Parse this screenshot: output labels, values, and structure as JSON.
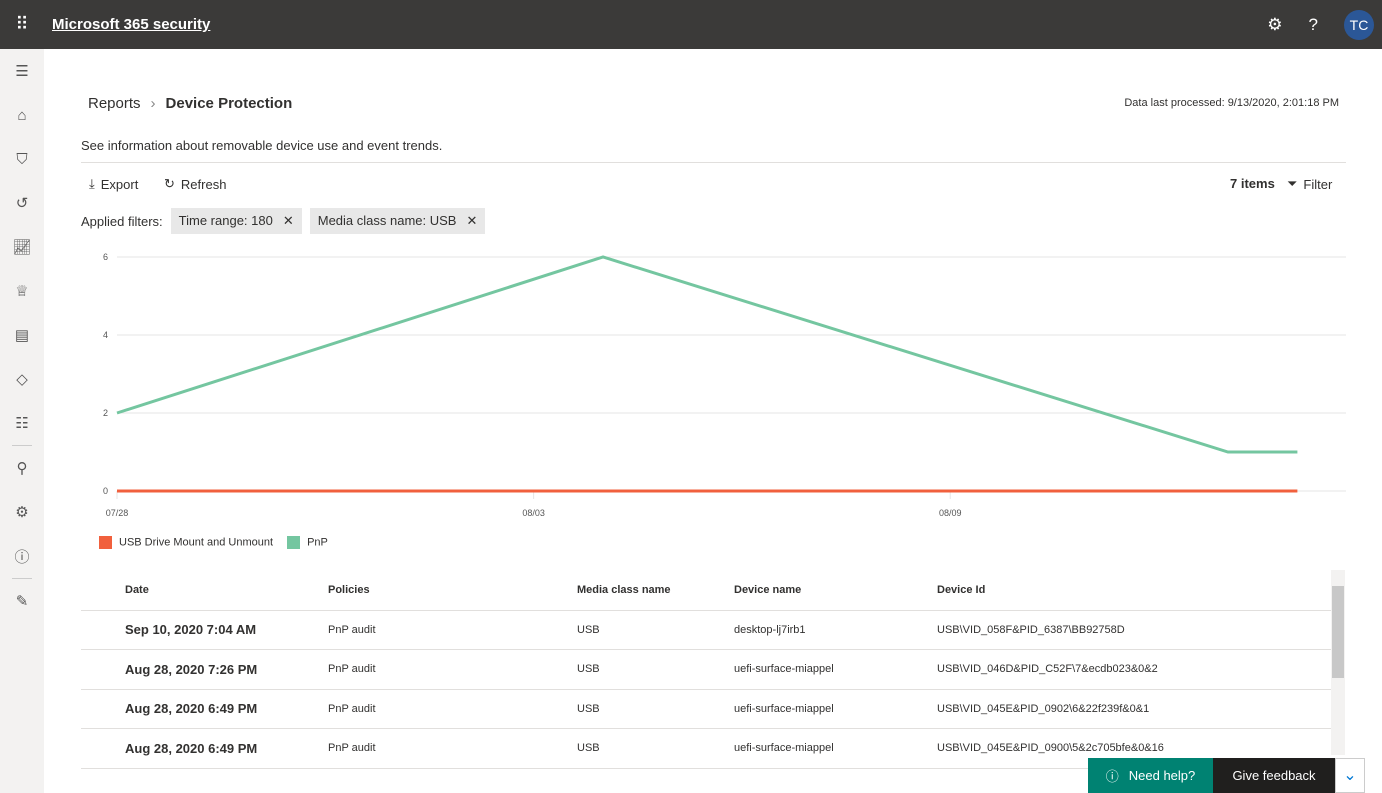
{
  "header": {
    "title": "Microsoft 365 security",
    "avatar": "TC",
    "icons": [
      "waffle-icon",
      "gear-icon",
      "help-icon"
    ]
  },
  "sidebar": {
    "icons": [
      "menu-icon",
      "home-icon",
      "shield-icon",
      "incidents-icon",
      "chart-icon",
      "trophy-icon",
      "reports-icon",
      "tag-icon",
      "settings-sliders-icon",
      "search-tool-icon",
      "gear-icon",
      "info-icon",
      "pencil-icon"
    ]
  },
  "breadcrumb": {
    "parent": "Reports",
    "current": "Device Protection"
  },
  "processed": "Data last processed: 9/13/2020, 2:01:18 PM",
  "description": "See information about removable device use and event trends.",
  "toolbar": {
    "export": "Export",
    "refresh": "Refresh",
    "count": "7 items",
    "filter": "Filter"
  },
  "filters": {
    "label": "Applied filters:",
    "chips": [
      "Time range: 180",
      "Media class name: USB"
    ]
  },
  "chart_data": {
    "type": "line",
    "x_ticks": [
      "07/28",
      "08/03",
      "08/09"
    ],
    "y_ticks": [
      0,
      2,
      4,
      6
    ],
    "ylim": [
      0,
      6
    ],
    "xlim": [
      "07/28",
      "08/14"
    ],
    "grid": "horizontal",
    "legend": "bottom-left",
    "series": [
      {
        "name": "USB Drive Mount and Unmount",
        "color": "#f1603d",
        "points": [
          [
            "07/28",
            0
          ],
          [
            "08/14",
            0
          ]
        ]
      },
      {
        "name": "PnP",
        "color": "#74c6a0",
        "points": [
          [
            "07/28",
            2
          ],
          [
            "08/04",
            6
          ],
          [
            "08/13",
            1
          ],
          [
            "08/14",
            1
          ]
        ]
      }
    ]
  },
  "table": {
    "columns": [
      "Date",
      "Policies",
      "Media class name",
      "Device name",
      "Device Id"
    ],
    "rows": [
      [
        "Sep 10, 2020 7:04 AM",
        "PnP audit",
        "USB",
        "desktop-lj7irb1",
        "USB\\VID_058F&PID_6387\\BB92758D"
      ],
      [
        "Aug 28, 2020 7:26 PM",
        "PnP audit",
        "USB",
        "uefi-surface-miappel",
        "USB\\VID_046D&PID_C52F\\7&ecdb023&0&2"
      ],
      [
        "Aug 28, 2020 6:49 PM",
        "PnP audit",
        "USB",
        "uefi-surface-miappel",
        "USB\\VID_045E&PID_0902\\6&22f239f&0&1"
      ],
      [
        "Aug 28, 2020 6:49 PM",
        "PnP audit",
        "USB",
        "uefi-surface-miappel",
        "USB\\VID_045E&PID_0900\\5&2c705bfe&0&16"
      ]
    ]
  },
  "footer": {
    "help": "Need help?",
    "feedback": "Give feedback"
  }
}
